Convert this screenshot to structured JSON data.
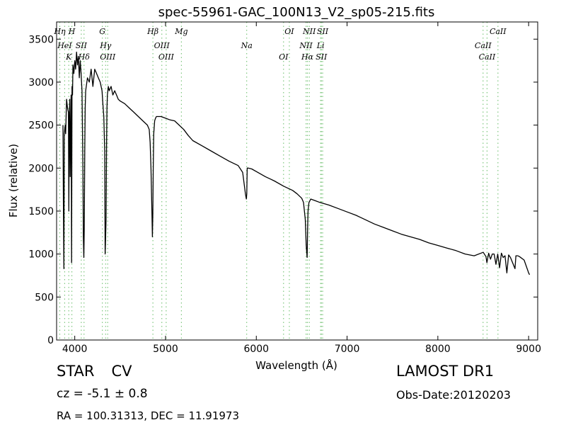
{
  "chart_data": {
    "type": "line",
    "title": "spec-55961-GAC_100N13_V2_sp05-215.fits",
    "xlabel": "Wavelength (Å)",
    "ylabel": "Flux (relative)",
    "xlim": [
      3800,
      9100
    ],
    "ylim": [
      0,
      3700
    ],
    "xticks": [
      4000,
      5000,
      6000,
      7000,
      8000,
      9000
    ],
    "yticks": [
      0,
      500,
      1000,
      1500,
      2000,
      2500,
      3000,
      3500
    ],
    "grid": false,
    "line_color": "#000000",
    "marker_color": "#7fc77f",
    "series": [
      {
        "name": "",
        "x": [
          3870,
          3875,
          3880,
          3885,
          3890,
          3895,
          3900,
          3910,
          3920,
          3930,
          3935,
          3940,
          3945,
          3950,
          3960,
          3965,
          3970,
          3975,
          3980,
          3990,
          4000,
          4010,
          4020,
          4030,
          4040,
          4050,
          4060,
          4070,
          4080,
          4090,
          4095,
          4100,
          4105,
          4110,
          4115,
          4120,
          4140,
          4160,
          4180,
          4200,
          4220,
          4240,
          4260,
          4280,
          4300,
          4310,
          4320,
          4330,
          4335,
          4340,
          4345,
          4350,
          4355,
          4360,
          4370,
          4380,
          4400,
          4420,
          4440,
          4460,
          4480,
          4500,
          4550,
          4600,
          4650,
          4700,
          4750,
          4800,
          4820,
          4830,
          4840,
          4850,
          4855,
          4860,
          4865,
          4870,
          4880,
          4890,
          4900,
          4950,
          5000,
          5050,
          5100,
          5150,
          5200,
          5250,
          5300,
          5400,
          5500,
          5600,
          5700,
          5800,
          5850,
          5880,
          5890,
          5895,
          5900,
          5910,
          5950,
          6000,
          6100,
          6200,
          6300,
          6400,
          6450,
          6500,
          6520,
          6540,
          6550,
          6560,
          6565,
          6570,
          6580,
          6590,
          6600,
          6650,
          6700,
          6800,
          6900,
          7000,
          7100,
          7200,
          7300,
          7400,
          7500,
          7600,
          7700,
          7800,
          7900,
          8000,
          8100,
          8200,
          8300,
          8400,
          8500,
          8530,
          8540,
          8560,
          8580,
          8600,
          8620,
          8640,
          8660,
          8680,
          8700,
          8720,
          8740,
          8760,
          8780,
          8800,
          8850,
          8860,
          8880,
          8900,
          8950,
          9000,
          9010
        ],
        "y": [
          2500,
          1600,
          830,
          2400,
          2450,
          2500,
          2400,
          2800,
          2700,
          2650,
          1500,
          2600,
          2800,
          1900,
          2850,
          900,
          2950,
          2850,
          3200,
          3100,
          3250,
          3150,
          3350,
          3200,
          3300,
          3050,
          3250,
          3100,
          2900,
          2000,
          1200,
          960,
          1300,
          2200,
          2700,
          2900,
          3050,
          3000,
          3150,
          2950,
          3150,
          3100,
          3050,
          3000,
          2900,
          2750,
          2600,
          2200,
          1000,
          1200,
          1400,
          2250,
          2700,
          2850,
          2950,
          2900,
          2950,
          2850,
          2900,
          2850,
          2800,
          2780,
          2750,
          2700,
          2650,
          2600,
          2550,
          2500,
          2450,
          2300,
          2000,
          1500,
          1200,
          1450,
          2000,
          2400,
          2550,
          2580,
          2600,
          2600,
          2580,
          2560,
          2550,
          2500,
          2450,
          2380,
          2320,
          2260,
          2200,
          2140,
          2080,
          2030,
          1950,
          1700,
          1640,
          1700,
          2000,
          2000,
          1990,
          1960,
          1900,
          1850,
          1790,
          1740,
          1700,
          1650,
          1600,
          1400,
          1100,
          960,
          1300,
          1500,
          1600,
          1620,
          1640,
          1620,
          1600,
          1570,
          1530,
          1490,
          1450,
          1400,
          1350,
          1310,
          1270,
          1230,
          1200,
          1170,
          1130,
          1100,
          1070,
          1040,
          1000,
          980,
          1020,
          970,
          900,
          1010,
          940,
          1000,
          1000,
          880,
          1000,
          840,
          1010,
          960,
          980,
          780,
          990,
          960,
          830,
          980,
          980,
          970,
          930,
          780,
          760
        ]
      }
    ],
    "markers": [
      {
        "label": "Hη",
        "x": 3835
      },
      {
        "label": "HeI",
        "x": 3889
      },
      {
        "label": "K",
        "x": 3934
      },
      {
        "label": "H",
        "x": 3968
      },
      {
        "label": "SII",
        "x": 4072
      },
      {
        "label": "Hδ",
        "x": 4102
      },
      {
        "label": "G",
        "x": 4304
      },
      {
        "label": "Hγ",
        "x": 4340
      },
      {
        "label": "OIII",
        "x": 4363
      },
      {
        "label": "Hβ",
        "x": 4861
      },
      {
        "label": "OIII",
        "x": 4959
      },
      {
        "label": "OIII",
        "x": 5007
      },
      {
        "label": "Mg",
        "x": 5175
      },
      {
        "label": "Na",
        "x": 5894
      },
      {
        "label": "OI",
        "x": 6300
      },
      {
        "label": "OI",
        "x": 6364
      },
      {
        "label": "NII",
        "x": 6548
      },
      {
        "label": "Hα",
        "x": 6563
      },
      {
        "label": "NII",
        "x": 6584
      },
      {
        "label": "Li",
        "x": 6708
      },
      {
        "label": "SII",
        "x": 6717
      },
      {
        "label": "SII",
        "x": 6731
      },
      {
        "label": "CaII",
        "x": 8498
      },
      {
        "label": "CaII",
        "x": 8542
      },
      {
        "label": "CaII",
        "x": 8662
      }
    ]
  },
  "info": {
    "class": "STAR",
    "subclass": "CV",
    "survey": "LAMOST DR1",
    "cz": "cz = -5.1 ± 0.8",
    "obs_date": "Obs-Date:20120203",
    "radec": "RA = 100.31313, DEC = 11.91973"
  }
}
